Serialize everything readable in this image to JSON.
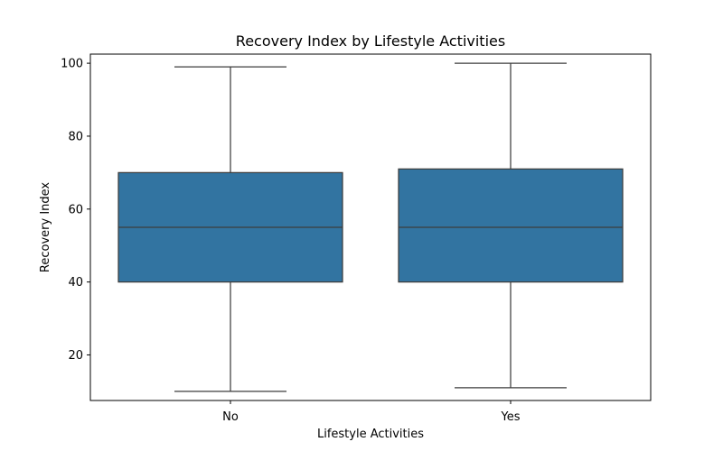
{
  "chart_data": {
    "type": "box",
    "title": "Recovery Index by Lifestyle Activities",
    "xlabel": "Lifestyle Activities",
    "ylabel": "Recovery Index",
    "ylim": [
      7.5,
      102.5
    ],
    "yticks": [
      20,
      40,
      60,
      80,
      100
    ],
    "grid": false,
    "legend": "none",
    "box_color": "#3274a1",
    "line_color": "#3d3d3d",
    "categories": [
      "No",
      "Yes"
    ],
    "boxes": [
      {
        "category": "No",
        "whisker_low": 10,
        "q1": 40,
        "median": 55,
        "q3": 70,
        "whisker_high": 99
      },
      {
        "category": "Yes",
        "whisker_low": 11,
        "q1": 40,
        "median": 55,
        "q3": 71,
        "whisker_high": 100
      }
    ]
  }
}
